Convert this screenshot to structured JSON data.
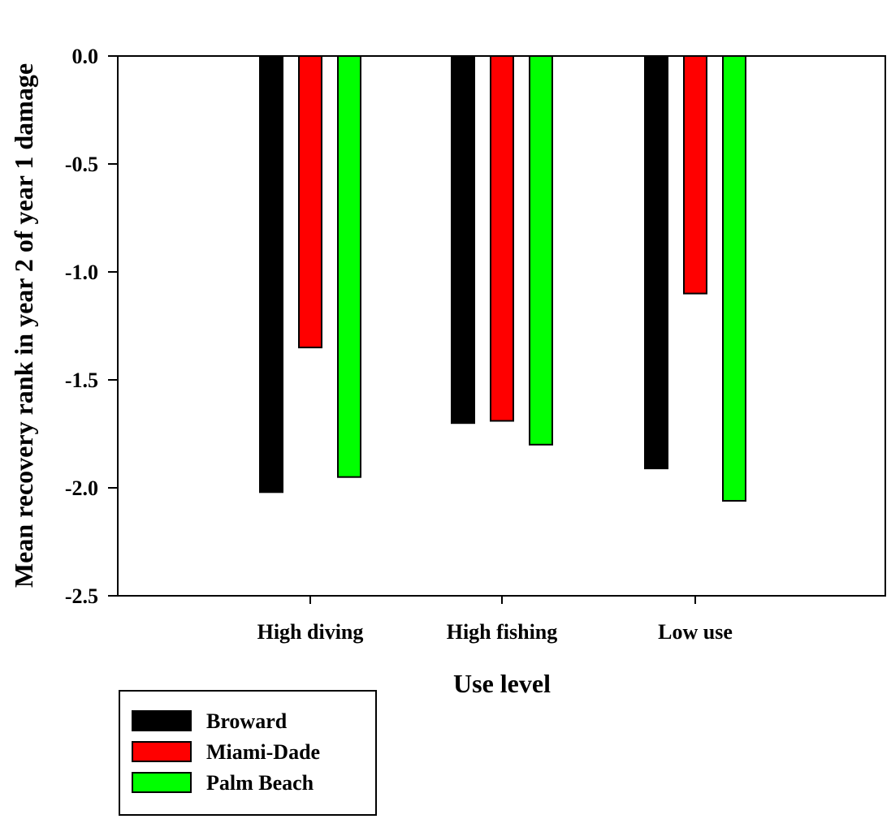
{
  "chart_data": {
    "type": "bar",
    "title": "",
    "xlabel": "Use level",
    "ylabel": "Mean recovery rank in year 2 of year 1 damage",
    "categories": [
      "High diving",
      "High fishing",
      "Low use"
    ],
    "series": [
      {
        "name": "Broward",
        "color": "#000000",
        "values": [
          -2.02,
          -1.7,
          -1.91
        ]
      },
      {
        "name": "Miami-Dade",
        "color": "#ff0000",
        "values": [
          -1.35,
          -1.69,
          -1.1
        ]
      },
      {
        "name": "Palm Beach",
        "color": "#00ff00",
        "values": [
          -1.95,
          -1.8,
          -2.06
        ]
      }
    ],
    "ylim": [
      -2.5,
      0.0
    ],
    "yticks": [
      0.0,
      -0.5,
      -1.0,
      -1.5,
      -2.0,
      -2.5
    ],
    "ytick_labels": [
      "0.0",
      "-0.5",
      "-1.0",
      "-1.5",
      "-2.0",
      "-2.5"
    ],
    "grid": false,
    "legend_position": "bottom-left, below plot"
  }
}
